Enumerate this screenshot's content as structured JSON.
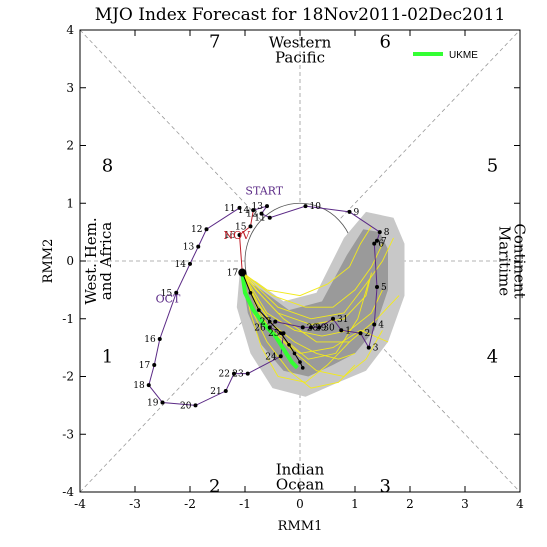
{
  "chart_data": {
    "type": "scatter",
    "title": "MJO Index Forecast for 18Nov2011-02Dec2011",
    "xlabel": "RMM1",
    "ylabel": "RMM2",
    "xlim": [
      -4,
      4
    ],
    "ylim": [
      -4,
      4
    ],
    "xticks": [
      "-4",
      "-3",
      "-2",
      "-1",
      "0",
      "1",
      "2",
      "3",
      "4"
    ],
    "yticks": [
      "-4",
      "-3",
      "-2",
      "-1",
      "0",
      "1",
      "2",
      "3",
      "4"
    ],
    "phases": [
      {
        "label": "1",
        "x": -3.5,
        "y": -1.65
      },
      {
        "label": "2",
        "x": -1.55,
        "y": -3.9
      },
      {
        "label": "3",
        "x": 1.55,
        "y": -3.9
      },
      {
        "label": "4",
        "x": 3.5,
        "y": -1.65
      },
      {
        "label": "5",
        "x": 3.5,
        "y": 1.65
      },
      {
        "label": "6",
        "x": 1.55,
        "y": 3.8
      },
      {
        "label": "7",
        "x": -1.55,
        "y": 3.8
      },
      {
        "label": "8",
        "x": -3.5,
        "y": 1.65
      }
    ],
    "regions": {
      "top": [
        "Western",
        "Pacific"
      ],
      "bottom": [
        "Indian",
        "Ocean"
      ],
      "left": [
        "West. Hem.",
        "and Africa"
      ],
      "right": [
        "Maritime",
        "Continent"
      ]
    },
    "month_labels": [
      {
        "label": "START",
        "x": -0.65,
        "y": 1.15,
        "color": "#5b2a86"
      },
      {
        "label": "NOV",
        "x": -1.15,
        "y": 0.38,
        "color": "#c0202a"
      },
      {
        "label": "OCT",
        "x": -2.4,
        "y": -0.72,
        "color": "#5b2a86"
      }
    ],
    "legend": {
      "entries": [
        {
          "name": "UKME",
          "color": "#33ff33"
        }
      ],
      "position": "top-right"
    },
    "observed_oct": {
      "color": "#5b2a86",
      "points": [
        {
          "day": "11",
          "x": -1.1,
          "y": 0.92
        },
        {
          "day": "12",
          "x": -1.7,
          "y": 0.55
        },
        {
          "day": "13",
          "x": -1.85,
          "y": 0.25
        },
        {
          "day": "14",
          "x": -2.0,
          "y": -0.05
        },
        {
          "day": "15",
          "x": -2.25,
          "y": -0.55
        },
        {
          "day": "16",
          "x": -2.55,
          "y": -1.35
        },
        {
          "day": "17",
          "x": -2.65,
          "y": -1.8
        },
        {
          "day": "18",
          "x": -2.75,
          "y": -2.15
        },
        {
          "day": "19",
          "x": -2.5,
          "y": -2.45
        },
        {
          "day": "20",
          "x": -1.9,
          "y": -2.5
        },
        {
          "day": "21",
          "x": -1.35,
          "y": -2.25
        },
        {
          "day": "22",
          "x": -1.2,
          "y": -1.95
        },
        {
          "day": "23",
          "x": -0.95,
          "y": -1.95
        },
        {
          "day": "24",
          "x": -0.35,
          "y": -1.65
        },
        {
          "day": "25",
          "x": -0.3,
          "y": -1.25
        },
        {
          "day": "26",
          "x": -0.55,
          "y": -1.15
        },
        {
          "day": "27",
          "x": -0.45,
          "y": -1.05
        },
        {
          "day": "28",
          "x": 0.05,
          "y": -1.15
        },
        {
          "day": "29",
          "x": 0.2,
          "y": -1.15
        },
        {
          "day": "30",
          "x": 0.35,
          "y": -1.15
        },
        {
          "day": "31",
          "x": 0.6,
          "y": -1.0
        },
        {
          "day": "1",
          "x": 0.75,
          "y": -1.2
        },
        {
          "day": "2",
          "x": 1.1,
          "y": -1.25
        },
        {
          "day": "3",
          "x": 1.25,
          "y": -1.5
        },
        {
          "day": "4",
          "x": 1.35,
          "y": -1.1
        },
        {
          "day": "5",
          "x": 1.4,
          "y": -0.45
        },
        {
          "day": "6",
          "x": 1.35,
          "y": 0.3
        },
        {
          "day": "7",
          "x": 1.4,
          "y": 0.35
        },
        {
          "day": "8",
          "x": 1.45,
          "y": 0.5
        },
        {
          "day": "9",
          "x": 0.9,
          "y": 0.85
        },
        {
          "day": "10",
          "x": 0.1,
          "y": 0.95
        },
        {
          "day": "11",
          "x": -0.55,
          "y": 0.75
        },
        {
          "day": "12",
          "x": -0.7,
          "y": 0.82
        },
        {
          "day": "13",
          "x": -0.6,
          "y": 0.95
        }
      ]
    },
    "observed_nov": {
      "color": "#c0202a",
      "points": [
        {
          "day": "14",
          "x": -0.85,
          "y": 0.88
        },
        {
          "day": "15",
          "x": -0.9,
          "y": 0.6
        },
        {
          "day": "16",
          "x": -1.1,
          "y": 0.45
        },
        {
          "day": "17",
          "x": -1.05,
          "y": -0.2
        }
      ]
    },
    "ukme_forecast": {
      "color": "#33ff33",
      "name": "UKME",
      "points": [
        [
          -1.05,
          -0.2
        ],
        [
          -1.0,
          -0.55
        ],
        [
          -0.85,
          -0.85
        ],
        [
          -0.65,
          -1.1
        ],
        [
          -0.45,
          -1.3
        ],
        [
          -0.35,
          -1.45
        ],
        [
          -0.25,
          -1.6
        ],
        [
          -0.15,
          -1.75
        ],
        [
          -0.05,
          -1.85
        ]
      ]
    },
    "ensemble_mean": {
      "color": "#000000",
      "points": [
        [
          -1.05,
          -0.2
        ],
        [
          -0.9,
          -0.55
        ],
        [
          -0.75,
          -0.85
        ],
        [
          -0.55,
          -1.05
        ],
        [
          -0.35,
          -1.25
        ],
        [
          -0.2,
          -1.45
        ],
        [
          -0.1,
          -1.6
        ],
        [
          0.0,
          -1.75
        ],
        [
          0.05,
          -1.85
        ]
      ]
    },
    "members": {
      "color": "#f2ea1c",
      "tracks": [
        [
          [
            -1.05,
            -0.2
          ],
          [
            -0.8,
            -0.7
          ],
          [
            -0.5,
            -1.1
          ],
          [
            -0.1,
            -1.4
          ],
          [
            0.3,
            -1.6
          ],
          [
            0.7,
            -1.7
          ],
          [
            1.0,
            -1.6
          ]
        ],
        [
          [
            -1.05,
            -0.2
          ],
          [
            -0.6,
            -0.9
          ],
          [
            -0.1,
            -1.2
          ],
          [
            0.4,
            -1.3
          ],
          [
            0.9,
            -1.2
          ],
          [
            1.3,
            -0.9
          ],
          [
            1.5,
            -0.5
          ]
        ],
        [
          [
            -1.05,
            -0.2
          ],
          [
            -0.7,
            -1.0
          ],
          [
            -0.2,
            -1.5
          ],
          [
            0.3,
            -1.9
          ],
          [
            0.8,
            -2.0
          ],
          [
            1.2,
            -1.7
          ],
          [
            1.5,
            -1.2
          ]
        ],
        [
          [
            -1.05,
            -0.2
          ],
          [
            -0.9,
            -0.8
          ],
          [
            -0.6,
            -1.4
          ],
          [
            -0.2,
            -1.9
          ],
          [
            0.2,
            -2.2
          ],
          [
            0.7,
            -2.1
          ],
          [
            1.0,
            -1.8
          ]
        ],
        [
          [
            -1.05,
            -0.2
          ],
          [
            -0.5,
            -0.6
          ],
          [
            0.1,
            -0.8
          ],
          [
            0.6,
            -0.8
          ],
          [
            1.0,
            -0.5
          ],
          [
            1.3,
            -0.1
          ],
          [
            1.5,
            0.3
          ]
        ],
        [
          [
            -1.05,
            -0.2
          ],
          [
            -0.4,
            -0.8
          ],
          [
            0.2,
            -1.0
          ],
          [
            0.8,
            -0.9
          ],
          [
            1.2,
            -0.4
          ],
          [
            1.5,
            0.0
          ],
          [
            1.7,
            0.4
          ]
        ],
        [
          [
            -1.05,
            -0.2
          ],
          [
            -0.8,
            -0.5
          ],
          [
            -0.4,
            -0.9
          ],
          [
            0.2,
            -1.1
          ],
          [
            0.8,
            -1.0
          ],
          [
            1.2,
            -0.6
          ],
          [
            1.3,
            -0.2
          ]
        ],
        [
          [
            -1.05,
            -0.2
          ],
          [
            -0.7,
            -0.6
          ],
          [
            -0.3,
            -1.0
          ],
          [
            0.3,
            -1.4
          ],
          [
            0.9,
            -1.4
          ],
          [
            1.4,
            -1.0
          ],
          [
            1.8,
            -0.6
          ]
        ],
        [
          [
            -1.05,
            -0.2
          ],
          [
            -0.9,
            -0.9
          ],
          [
            -0.7,
            -1.5
          ],
          [
            -0.4,
            -2.0
          ],
          [
            0.1,
            -2.1
          ],
          [
            0.5,
            -1.8
          ],
          [
            0.9,
            -1.4
          ]
        ],
        [
          [
            -1.05,
            -0.2
          ],
          [
            -0.6,
            -0.5
          ],
          [
            0.0,
            -0.6
          ],
          [
            0.5,
            -0.4
          ],
          [
            0.9,
            -0.1
          ],
          [
            1.1,
            0.3
          ],
          [
            1.3,
            0.6
          ]
        ],
        [
          [
            -1.05,
            -0.2
          ],
          [
            -0.85,
            -0.65
          ],
          [
            -0.55,
            -1.2
          ],
          [
            0.0,
            -1.6
          ],
          [
            0.6,
            -1.5
          ],
          [
            1.1,
            -1.2
          ],
          [
            1.6,
            -1.4
          ]
        ],
        [
          [
            -1.05,
            -0.2
          ],
          [
            -0.75,
            -0.75
          ],
          [
            -0.35,
            -1.3
          ],
          [
            0.15,
            -1.7
          ],
          [
            0.65,
            -1.6
          ],
          [
            1.05,
            -1.0
          ],
          [
            1.25,
            -0.35
          ]
        ]
      ]
    },
    "spread_80": [
      [
        -1.1,
        -0.25
      ],
      [
        -1.15,
        -0.8
      ],
      [
        -0.9,
        -1.6
      ],
      [
        -0.5,
        -2.2
      ],
      [
        0.1,
        -2.35
      ],
      [
        0.7,
        -2.1
      ],
      [
        1.2,
        -1.9
      ],
      [
        1.6,
        -1.4
      ],
      [
        1.9,
        -0.6
      ],
      [
        1.9,
        0.3
      ],
      [
        1.7,
        0.75
      ],
      [
        1.2,
        0.85
      ],
      [
        0.8,
        0.4
      ],
      [
        0.3,
        -0.55
      ],
      [
        -0.3,
        -0.7
      ],
      [
        -0.8,
        -0.35
      ]
    ],
    "spread_50": [
      [
        -1.05,
        -0.3
      ],
      [
        -0.95,
        -0.9
      ],
      [
        -0.7,
        -1.45
      ],
      [
        -0.3,
        -1.9
      ],
      [
        0.15,
        -2.0
      ],
      [
        0.6,
        -1.8
      ],
      [
        1.0,
        -1.6
      ],
      [
        1.35,
        -1.2
      ],
      [
        1.6,
        -0.5
      ],
      [
        1.6,
        0.2
      ],
      [
        1.45,
        0.5
      ],
      [
        1.15,
        0.55
      ],
      [
        0.85,
        0.1
      ],
      [
        0.4,
        -0.7
      ],
      [
        -0.2,
        -0.85
      ],
      [
        -0.7,
        -0.5
      ]
    ]
  }
}
